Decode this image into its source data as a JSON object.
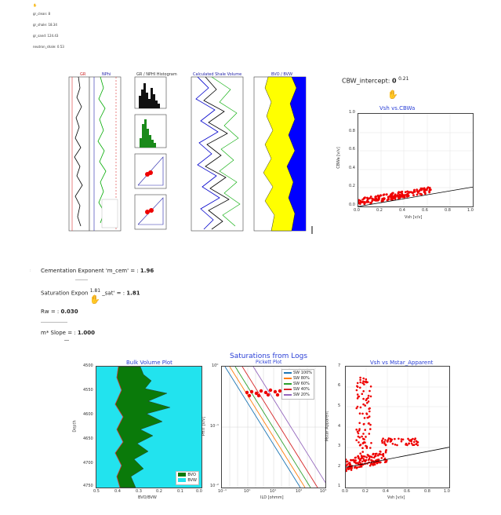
{
  "top_params": [
    {
      "label": "gr_clean: 8"
    },
    {
      "label": "gr_shale: 18.34"
    },
    {
      "label": "gr_sand: 124.43"
    },
    {
      "label": "neutron_shale: 0.53"
    }
  ],
  "cbw_intercept": {
    "label": "CBW_intercept:",
    "value": "0",
    "sup": "0.21"
  },
  "vsh_cbwa_chart": {
    "title": "Vsh vs.CBWa",
    "xlabel": "Vsh [v/v]",
    "ylabel": "CBWa [v/v]",
    "xticks": [
      "0.0",
      "0.2",
      "0.4",
      "0.6",
      "0.8",
      "1.0"
    ],
    "yticks": [
      "0.0",
      "0.2",
      "0.4",
      "0.6",
      "0.8",
      "1.0"
    ]
  },
  "log_track_titles": [
    "GR",
    "NPhi",
    "GR / NPHI Histogram",
    "Calculated Shale Volume",
    "BVO / BVW"
  ],
  "params": {
    "m_cem": {
      "label": "Cementation Exponent 'm_cem' = :",
      "value": "1.96"
    },
    "n_sat": {
      "label_a": "Saturation Expon",
      "label_b": "_sat' = :",
      "value": "1.81",
      "sup": "1.81"
    },
    "rw": {
      "label": "Rw = :",
      "value": "0.030"
    },
    "m_slope": {
      "label": "m* Slope = :",
      "value": "1.000"
    }
  },
  "bottom_title": "Saturations from Logs",
  "bulk_volume": {
    "title": "Bulk Volume Plot",
    "xlabel": "BVO/BVW",
    "ylabel": "Depth",
    "yticks": [
      "4500",
      "4550",
      "4600",
      "4650",
      "4700",
      "4750"
    ],
    "xticks": [
      "0.5",
      "0.4",
      "0.3",
      "0.2",
      "0.1",
      "0.0"
    ],
    "legend": [
      {
        "name": "BVO",
        "color": "#0a7a0a"
      },
      {
        "name": "BVW",
        "color": "#22e3ee"
      }
    ]
  },
  "pickett": {
    "title": "Pickett Plot",
    "xlabel": "ILD [ohmm]",
    "ylabel": "PHIT [v/v]",
    "xticks": [
      "10⁻¹",
      "10⁰",
      "10¹",
      "10²",
      "10³"
    ],
    "yticks": [
      "10⁰",
      "10⁻¹",
      "10⁻²"
    ],
    "legend": [
      {
        "name": "SW 100%",
        "color": "#1f77b4"
      },
      {
        "name": "SW 80%",
        "color": "#ff7f0e"
      },
      {
        "name": "SW 60%",
        "color": "#2ca02c"
      },
      {
        "name": "SW 40%",
        "color": "#d62728"
      },
      {
        "name": "SW 20%",
        "color": "#9467bd"
      }
    ]
  },
  "mstar": {
    "title": "Vsh vs Mstar_Apparent",
    "xlabel": "Vsh [v/v]",
    "ylabel": "Mstar Apparent",
    "xticks": [
      "0.0",
      "0.2",
      "0.4",
      "0.6",
      "0.8",
      "1.0"
    ],
    "yticks": [
      "1",
      "2",
      "3",
      "4",
      "5",
      "6",
      "7"
    ]
  },
  "colors": {
    "blue_label": "#2a3fd6",
    "red_point": "#e00000",
    "yellow": "#ffff00",
    "blue_fill": "#0000ff"
  }
}
